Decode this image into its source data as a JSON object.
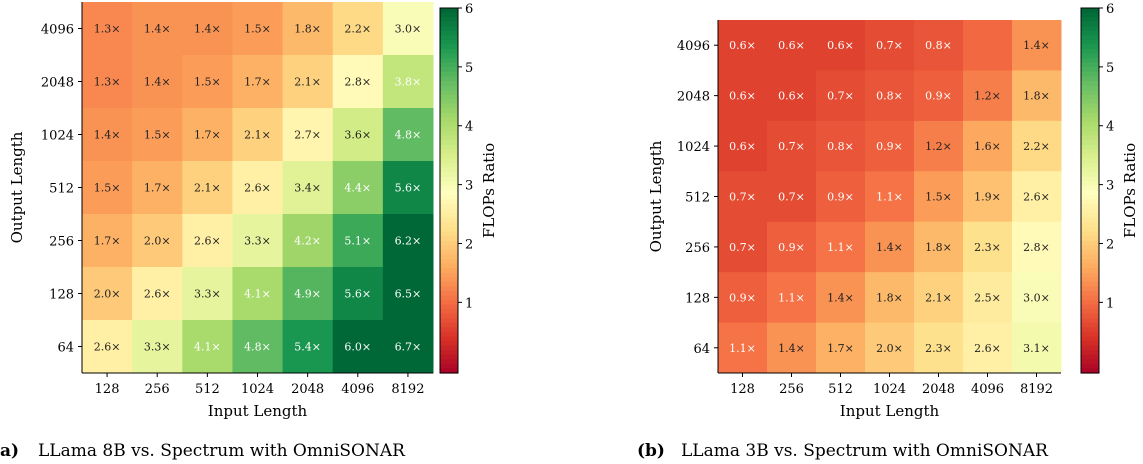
{
  "figure": {
    "colorbar_label": "FLOPs Ratio",
    "colorbar_ticks": [
      "1",
      "2",
      "3",
      "4",
      "5",
      "6"
    ],
    "colorbar_range": [
      -0.2,
      6.0
    ],
    "colormap": [
      "#a50026",
      "#d73027",
      "#f46d43",
      "#fdae61",
      "#fee08b",
      "#ffffbf",
      "#d9ef8b",
      "#a6d96a",
      "#66bd63",
      "#1a9850",
      "#006837"
    ]
  },
  "chart_data": [
    {
      "type": "heatmap",
      "caption_tag": "a)",
      "caption_text": "LLama 8B vs. Spectrum with OmniSONAR",
      "xlabel": "Input Length",
      "ylabel": "Output Length",
      "x": [
        "128",
        "256",
        "512",
        "1024",
        "2048",
        "4096",
        "8192"
      ],
      "y": [
        "4096",
        "2048",
        "1024",
        "512",
        "256",
        "128",
        "64"
      ],
      "values": [
        [
          1.3,
          1.4,
          1.4,
          1.5,
          1.8,
          2.2,
          3.0
        ],
        [
          1.3,
          1.4,
          1.5,
          1.7,
          2.1,
          2.8,
          3.8
        ],
        [
          1.4,
          1.5,
          1.7,
          2.1,
          2.7,
          3.6,
          4.8
        ],
        [
          1.5,
          1.7,
          2.1,
          2.6,
          3.4,
          4.4,
          5.6
        ],
        [
          1.7,
          2.0,
          2.6,
          3.3,
          4.2,
          5.1,
          6.2
        ],
        [
          2.0,
          2.6,
          3.3,
          4.1,
          4.9,
          5.6,
          6.5
        ],
        [
          2.6,
          3.3,
          4.1,
          4.8,
          5.4,
          6.0,
          6.7
        ]
      ],
      "labels": [
        [
          "1.3×",
          "1.4×",
          "1.4×",
          "1.5×",
          "1.8×",
          "2.2×",
          "3.0×"
        ],
        [
          "1.3×",
          "1.4×",
          "1.5×",
          "1.7×",
          "2.1×",
          "2.8×",
          "3.8×"
        ],
        [
          "1.4×",
          "1.5×",
          "1.7×",
          "2.1×",
          "2.7×",
          "3.6×",
          "4.8×"
        ],
        [
          "1.5×",
          "1.7×",
          "2.1×",
          "2.6×",
          "3.4×",
          "4.4×",
          "5.6×"
        ],
        [
          "1.7×",
          "2.0×",
          "2.6×",
          "3.3×",
          "4.2×",
          "5.1×",
          "6.2×"
        ],
        [
          "2.0×",
          "2.6×",
          "3.3×",
          "4.1×",
          "4.9×",
          "5.6×",
          "6.5×"
        ],
        [
          "2.6×",
          "3.3×",
          "4.1×",
          "4.8×",
          "5.4×",
          "6.0×",
          "6.7×"
        ]
      ]
    },
    {
      "type": "heatmap",
      "caption_tag": "(b)",
      "caption_text": "LLama 3B vs. Spectrum with OmniSONAR",
      "xlabel": "Input Length",
      "ylabel": "Output Length",
      "x": [
        "128",
        "256",
        "512",
        "1024",
        "2048",
        "4096",
        "8192"
      ],
      "y": [
        "4096",
        "2048",
        "1024",
        "512",
        "256",
        "128",
        "64"
      ],
      "values": [
        [
          0.6,
          0.6,
          0.6,
          0.7,
          0.8,
          1.0,
          1.4
        ],
        [
          0.6,
          0.6,
          0.7,
          0.8,
          0.9,
          1.2,
          1.8
        ],
        [
          0.6,
          0.7,
          0.8,
          0.9,
          1.2,
          1.6,
          2.2
        ],
        [
          0.7,
          0.7,
          0.9,
          1.1,
          1.5,
          1.9,
          2.6
        ],
        [
          0.7,
          0.9,
          1.1,
          1.4,
          1.8,
          2.3,
          2.8
        ],
        [
          0.9,
          1.1,
          1.4,
          1.8,
          2.1,
          2.5,
          3.0
        ],
        [
          1.1,
          1.4,
          1.7,
          2.0,
          2.3,
          2.6,
          3.1
        ]
      ],
      "labels": [
        [
          "0.6×",
          "0.6×",
          "0.6×",
          "0.7×",
          "0.8×",
          "",
          "1.4×"
        ],
        [
          "0.6×",
          "0.6×",
          "0.7×",
          "0.8×",
          "0.9×",
          "1.2×",
          "1.8×"
        ],
        [
          "0.6×",
          "0.7×",
          "0.8×",
          "0.9×",
          "1.2×",
          "1.6×",
          "2.2×"
        ],
        [
          "0.7×",
          "0.7×",
          "0.9×",
          "1.1×",
          "1.5×",
          "1.9×",
          "2.6×"
        ],
        [
          "0.7×",
          "0.9×",
          "1.1×",
          "1.4×",
          "1.8×",
          "2.3×",
          "2.8×"
        ],
        [
          "0.9×",
          "1.1×",
          "1.4×",
          "1.8×",
          "2.1×",
          "2.5×",
          "3.0×"
        ],
        [
          "1.1×",
          "1.4×",
          "1.7×",
          "2.0×",
          "2.3×",
          "2.6×",
          "3.1×"
        ]
      ]
    }
  ]
}
